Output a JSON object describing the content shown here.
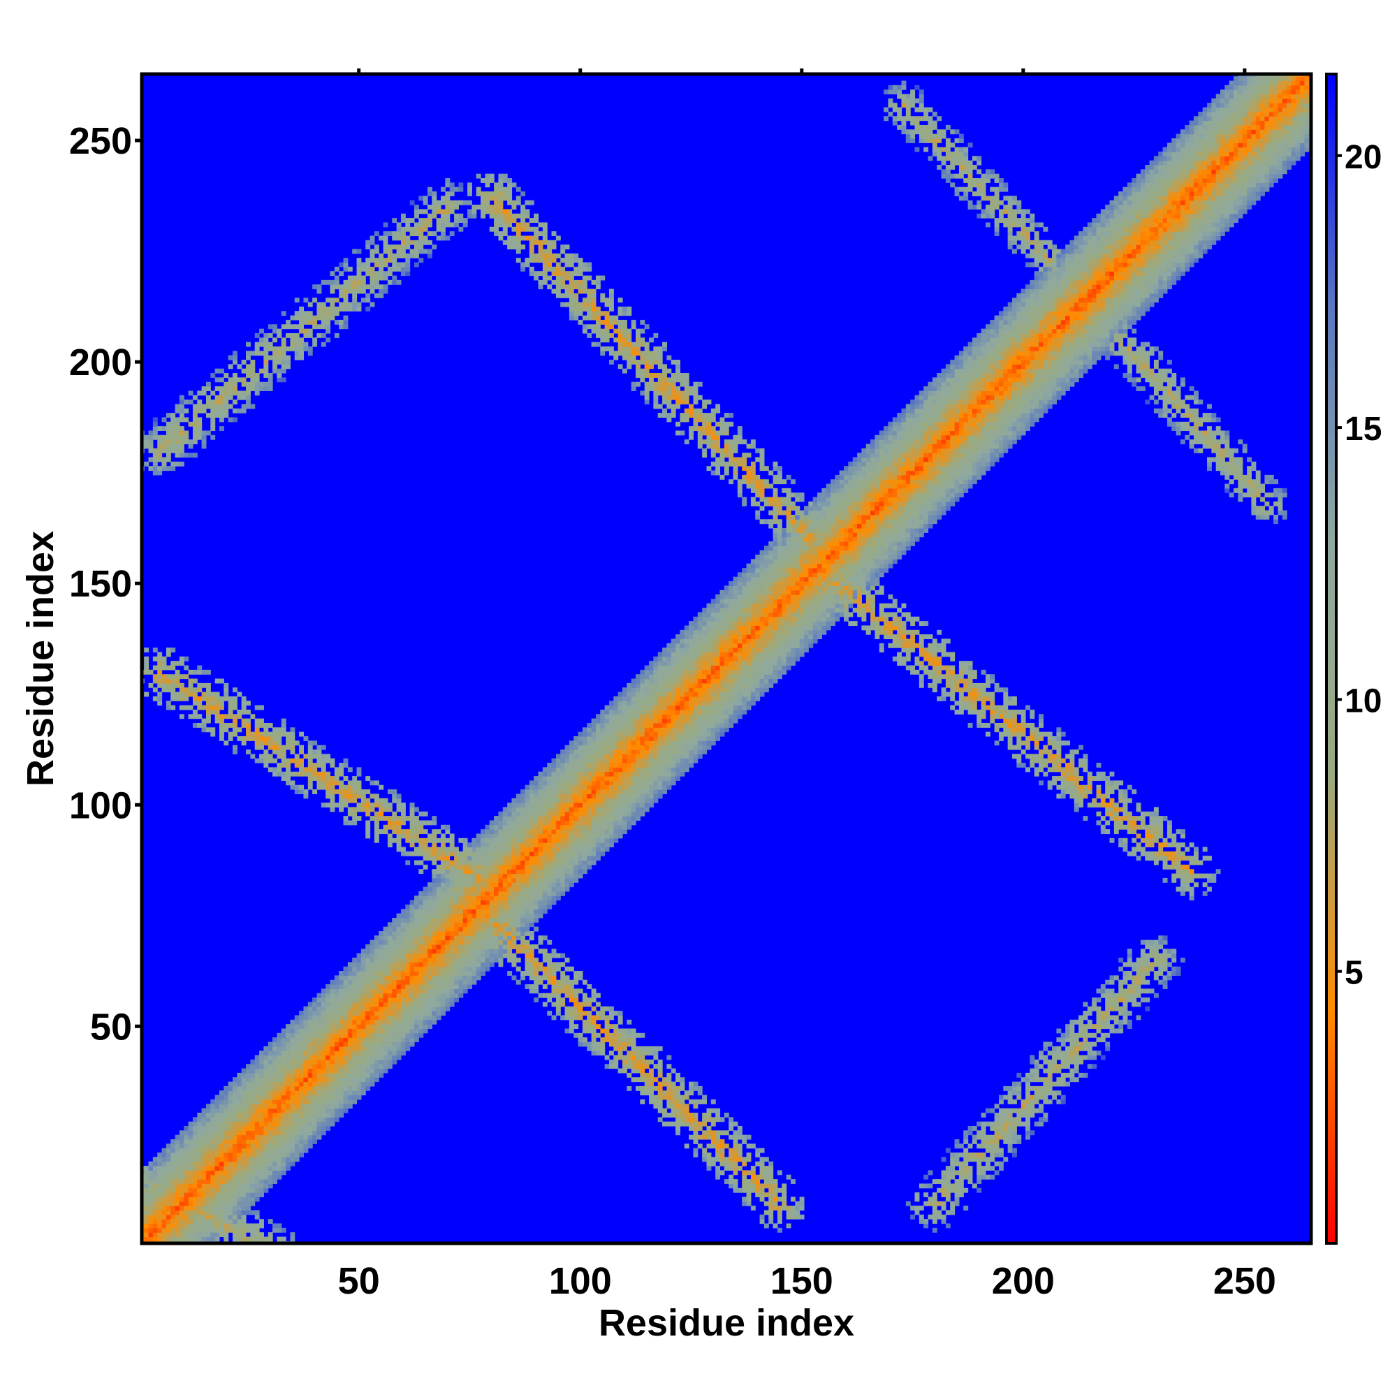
{
  "chart_data": {
    "type": "heatmap",
    "xlabel": "Residue index",
    "ylabel": "Residue index",
    "xlim": [
      1,
      265
    ],
    "ylim": [
      1,
      265
    ],
    "x_ticks": [
      50,
      100,
      150,
      200,
      250
    ],
    "y_ticks": [
      50,
      100,
      150,
      200,
      250
    ],
    "x_tick_labels": [
      "50",
      "100",
      "150",
      "200",
      "250"
    ],
    "y_tick_labels": [
      "50",
      "100",
      "150",
      "200",
      "250"
    ],
    "colorbar": {
      "range": [
        0,
        21.5
      ],
      "ticks": [
        5,
        10,
        15,
        20
      ],
      "tick_labels": [
        "5",
        "10",
        "15",
        "20"
      ],
      "colors": [
        "#ff0000",
        "#ff8c00",
        "#9aaa80",
        "#8fa9a0",
        "#5a78c0",
        "#0000ff"
      ],
      "background_color": "#0000ff"
    },
    "diagonal": {
      "from": [
        1,
        1
      ],
      "to": [
        265,
        265
      ],
      "core_value": 3,
      "half_width": 12
    },
    "contact_bands": [
      {
        "from": [
          5,
          130
        ],
        "to": [
          78,
          83
        ],
        "half_width": 6,
        "min_value": 6
      },
      {
        "from": [
          74,
          80
        ],
        "to": [
          145,
          10
        ],
        "half_width": 6,
        "min_value": 6
      },
      {
        "from": [
          80,
          237
        ],
        "to": [
          152,
          160
        ],
        "half_width": 6,
        "min_value": 6
      },
      {
        "from": [
          158,
          150
        ],
        "to": [
          238,
          85
        ],
        "half_width": 6,
        "min_value": 6
      },
      {
        "from": [
          5,
          180
        ],
        "to": [
          70,
          235
        ],
        "half_width": 6,
        "min_value": 8
      },
      {
        "from": [
          180,
          10
        ],
        "to": [
          230,
          65
        ],
        "half_width": 6,
        "min_value": 8
      },
      {
        "from": [
          173,
          258
        ],
        "to": [
          206,
          223
        ],
        "half_width": 5,
        "min_value": 8
      },
      {
        "from": [
          222,
          205
        ],
        "to": [
          255,
          168
        ],
        "half_width": 5,
        "min_value": 8
      },
      {
        "from": [
          0,
          15
        ],
        "to": [
          30,
          0
        ],
        "half_width": 6,
        "min_value": 8
      }
    ]
  }
}
